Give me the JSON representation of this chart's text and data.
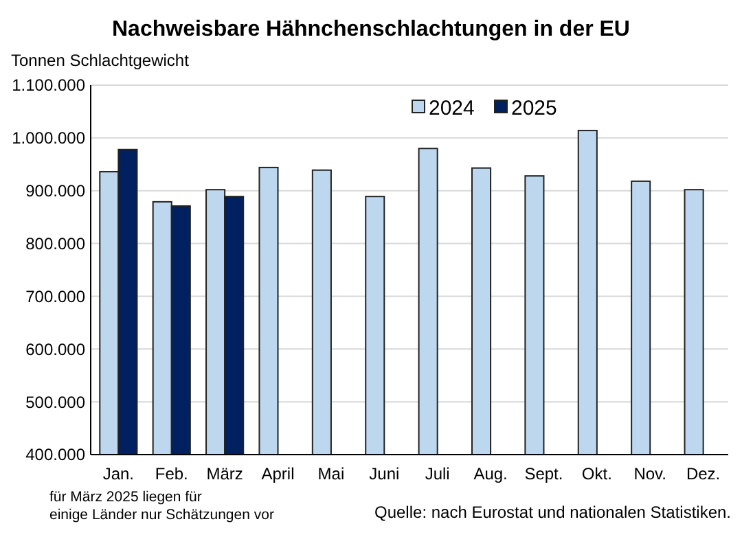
{
  "chart_data": {
    "type": "bar",
    "title": "Nachweisbare Hähnchenschlachtungen in der EU",
    "ylabel": "Tonnen Schlachtgewicht",
    "categories": [
      "Jan.",
      "Feb.",
      "März",
      "April",
      "Mai",
      "Juni",
      "Juli",
      "Aug.",
      "Sept.",
      "Okt.",
      "Nov.",
      "Dez."
    ],
    "series": [
      {
        "name": "2024",
        "color": "#bdd7ee",
        "values": [
          936000,
          879000,
          902000,
          944000,
          939000,
          889000,
          980000,
          943000,
          928000,
          1014000,
          918000,
          902000
        ]
      },
      {
        "name": "2025",
        "color": "#002060",
        "values": [
          978000,
          871000,
          889000,
          null,
          null,
          null,
          null,
          null,
          null,
          null,
          null,
          null
        ]
      }
    ],
    "ylim": [
      400000,
      1100000
    ],
    "yticks": [
      {
        "value": 400000,
        "label": "400.000"
      },
      {
        "value": 500000,
        "label": "500.000"
      },
      {
        "value": 600000,
        "label": "600.000"
      },
      {
        "value": 700000,
        "label": "700.000"
      },
      {
        "value": 800000,
        "label": "800.000"
      },
      {
        "value": 900000,
        "label": "900.000"
      },
      {
        "value": 1000000,
        "label": "1.000.000"
      },
      {
        "value": 1100000,
        "label": "1.100.000"
      }
    ],
    "grid": "y",
    "legend": "top right",
    "annotations": [
      "für März 2025 liegen für einige Länder nur Schätzungen vor",
      "Quelle: nach Eurostat und nationalen Statistiken."
    ]
  }
}
